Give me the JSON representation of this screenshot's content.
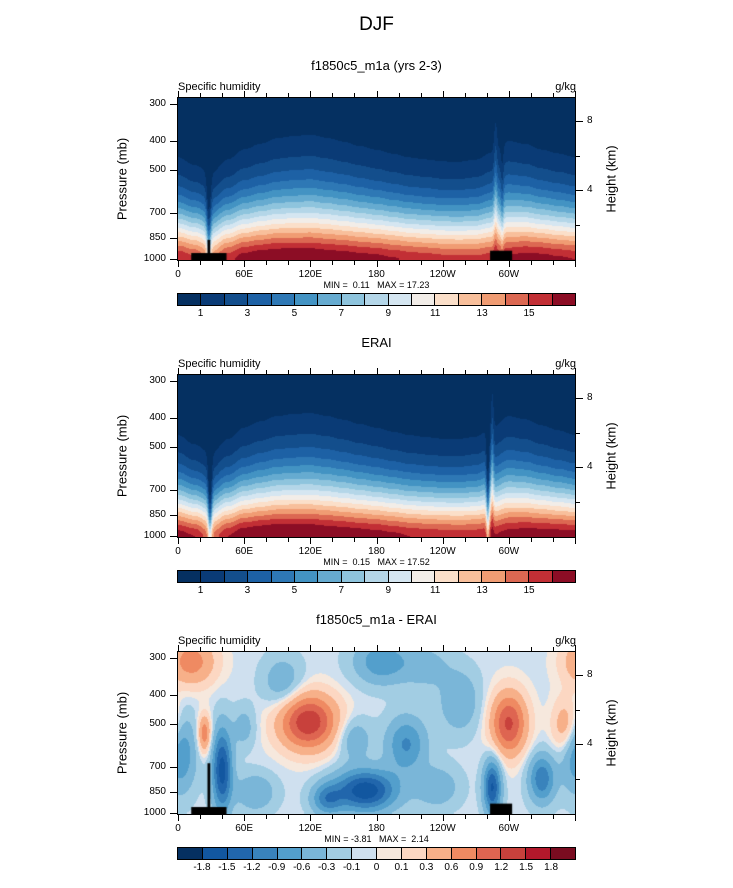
{
  "chart_data": {
    "type": "heatmap",
    "title": "DJF",
    "field_label": "Specific humidity",
    "units": "g/kg",
    "profile_exponent": 1.5,
    "x_axis": {
      "range_deg": [
        0,
        360
      ],
      "minor_step_deg": 20,
      "major_ticks": [
        {
          "deg": 0,
          "label": "0"
        },
        {
          "deg": 60,
          "label": "60E"
        },
        {
          "deg": 120,
          "label": "120E"
        },
        {
          "deg": 180,
          "label": "180"
        },
        {
          "deg": 240,
          "label": "120W"
        },
        {
          "deg": 300,
          "label": "60W"
        }
      ]
    },
    "pressure_axis": {
      "label": "Pressure (mb)",
      "scale": "log",
      "top_mb": 287,
      "bottom_mb": 1008,
      "ticks": [
        300,
        400,
        500,
        700,
        850,
        1000
      ]
    },
    "height_axis": {
      "label": "Height (km)",
      "scale_height_km": 7.5,
      "major_ticks_km": [
        8,
        4
      ],
      "minor_ticks_km": [
        6,
        2
      ]
    },
    "levels_absolute": [
      1,
      2,
      3,
      4,
      5,
      6,
      7,
      8,
      9,
      10,
      11,
      12,
      13,
      14,
      15,
      16
    ],
    "palette_absolute": [
      "#053061",
      "#0a3b76",
      "#134e8c",
      "#1d61a5",
      "#2e78b5",
      "#4393c3",
      "#66abd0",
      "#8ec4dd",
      "#b4d6e8",
      "#d5e6f1",
      "#f2ede8",
      "#fbdfc9",
      "#f8bf9b",
      "#f09c73",
      "#dc6852",
      "#c22f35",
      "#8c0d25"
    ],
    "colorbar_labels_absolute": [
      "1",
      "3",
      "5",
      "7",
      "9",
      "11",
      "13",
      "15"
    ],
    "levels_difference": [
      -1.8,
      -1.5,
      -1.2,
      -0.9,
      -0.6,
      -0.3,
      -0.1,
      0,
      0.1,
      0.3,
      0.6,
      0.9,
      1.2,
      1.5,
      1.8
    ],
    "palette_difference": [
      "#053061",
      "#1257a0",
      "#2166ac",
      "#3983bc",
      "#539fcc",
      "#7ab6d8",
      "#a2cde3",
      "#cfe0ef",
      "#f6e8dd",
      "#fcd7c2",
      "#f7b089",
      "#ef8a62",
      "#de6551",
      "#c8413c",
      "#b2182b",
      "#7a0c20"
    ],
    "colorbar_labels_difference": [
      "-1.8",
      "-1.5",
      "-1.2",
      "-0.9",
      "-0.6",
      "-0.3",
      "-0.1",
      "0",
      "0.1",
      "0.3",
      "0.6",
      "0.9",
      "1.2",
      "1.5",
      "1.8"
    ],
    "panels": [
      {
        "title": "f1850c5_m1a (yrs 2-3)",
        "kind": "absolute",
        "stats": "MIN =  0.11   MAX = 17.23",
        "min": 0.11,
        "max": 17.23,
        "lon_step_deg": 15,
        "surface_q_gkg": [
          16.0,
          15.3,
          13.8,
          15.6,
          16.6,
          17.0,
          17.2,
          17.2,
          17.2,
          17.0,
          16.8,
          16.6,
          16.4,
          16.1,
          15.8,
          15.6,
          15.4,
          15.3,
          15.3,
          15.6,
          16.3,
          16.6,
          16.5,
          16.2,
          16.0
        ],
        "moist_depth_km": [
          3.0,
          2.8,
          2.62,
          2.95,
          3.2,
          3.35,
          3.5,
          3.56,
          3.6,
          3.52,
          3.42,
          3.3,
          3.2,
          3.1,
          3.0,
          2.95,
          2.9,
          2.9,
          2.96,
          3.16,
          3.46,
          3.36,
          3.2,
          3.1,
          3.0
        ],
        "spikes": [
          {
            "lon": 28,
            "width_deg": 2.2,
            "depth_factor": 0.62,
            "q_factor": 0.75
          },
          {
            "lon": 288,
            "width_deg": 1.8,
            "depth_factor": 1.25,
            "q_factor": 1.05
          },
          {
            "lon": 294,
            "width_deg": 1.5,
            "depth_factor": 0.85,
            "q_factor": 0.95
          }
        ],
        "topography": [
          {
            "lon0": 12,
            "lon1": 44,
            "top_mb": 955,
            "spike_lon": 28,
            "spike_width_deg": 2.5,
            "spike_top_mb": 862
          },
          {
            "lon0": 283,
            "lon1": 303,
            "top_mb": 938
          }
        ]
      },
      {
        "title": "ERAI",
        "kind": "absolute",
        "stats": "MIN =  0.15   MAX = 17.52",
        "min": 0.15,
        "max": 17.52,
        "lon_step_deg": 15,
        "surface_q_gkg": [
          16.6,
          16.0,
          14.2,
          16.0,
          17.0,
          17.3,
          17.5,
          17.5,
          17.4,
          17.2,
          17.0,
          16.8,
          16.6,
          16.3,
          16.0,
          15.8,
          15.7,
          15.6,
          15.7,
          16.0,
          16.6,
          16.8,
          16.8,
          16.7,
          16.6
        ],
        "moist_depth_km": [
          2.95,
          2.7,
          2.5,
          2.85,
          3.15,
          3.32,
          3.46,
          3.52,
          3.55,
          3.48,
          3.38,
          3.26,
          3.16,
          3.06,
          2.97,
          2.92,
          2.88,
          2.88,
          2.94,
          3.2,
          3.5,
          3.4,
          3.22,
          3.08,
          2.95
        ],
        "spikes": [
          {
            "lon": 29,
            "width_deg": 2.0,
            "depth_factor": 0.52,
            "q_factor": 0.72
          },
          {
            "lon": 281,
            "width_deg": 1.6,
            "depth_factor": 0.62,
            "q_factor": 0.8
          },
          {
            "lon": 285,
            "width_deg": 1.5,
            "depth_factor": 1.3,
            "q_factor": 1.05
          }
        ],
        "topography": []
      },
      {
        "title": "f1850c5_m1a - ERAI",
        "kind": "difference",
        "stats": "MIN = -3.81   MAX =  2.14",
        "min": -3.81,
        "max": 2.14,
        "background": -0.04,
        "anomalies": [
          {
            "lon": 2,
            "z": 3.5,
            "slon": 14,
            "sz": 2.2,
            "amp": -0.9
          },
          {
            "lon": 40,
            "z": 2.5,
            "slon": 9,
            "sz": 2.4,
            "amp": -1.6
          },
          {
            "lon": 24,
            "z": 4.6,
            "slon": 6,
            "sz": 1.1,
            "amp": 0.9
          },
          {
            "lon": 12,
            "z": 8.8,
            "slon": 22,
            "sz": 1.4,
            "amp": 0.8
          },
          {
            "lon": 70,
            "z": 1.2,
            "slon": 18,
            "sz": 1.1,
            "amp": -0.55
          },
          {
            "lon": 60,
            "z": 5.0,
            "slon": 10,
            "sz": 1.2,
            "amp": -0.4
          },
          {
            "lon": 95,
            "z": 7.6,
            "slon": 18,
            "sz": 1.5,
            "amp": -0.5
          },
          {
            "lon": 118,
            "z": 5.3,
            "slon": 26,
            "sz": 1.6,
            "amp": 1.5
          },
          {
            "lon": 135,
            "z": 0.8,
            "slon": 14,
            "sz": 0.9,
            "amp": -0.9
          },
          {
            "lon": 170,
            "z": 1.3,
            "slon": 28,
            "sz": 1.2,
            "amp": -1.7
          },
          {
            "lon": 160,
            "z": 4.3,
            "slon": 15,
            "sz": 1.2,
            "amp": -0.5
          },
          {
            "lon": 185,
            "z": 8.8,
            "slon": 25,
            "sz": 1.3,
            "amp": -0.8
          },
          {
            "lon": 207,
            "z": 4.0,
            "slon": 18,
            "sz": 1.6,
            "amp": -0.9
          },
          {
            "lon": 225,
            "z": 8.5,
            "slon": 20,
            "sz": 1.2,
            "amp": -0.4
          },
          {
            "lon": 235,
            "z": 1.5,
            "slon": 20,
            "sz": 1.2,
            "amp": -0.5
          },
          {
            "lon": 255,
            "z": 6.5,
            "slon": 18,
            "sz": 1.8,
            "amp": -0.55
          },
          {
            "lon": 300,
            "z": 5.2,
            "slon": 16,
            "sz": 1.8,
            "amp": 1.3
          },
          {
            "lon": 285,
            "z": 1.5,
            "slon": 8,
            "sz": 1.6,
            "amp": -1.5
          },
          {
            "lon": 330,
            "z": 2.0,
            "slon": 12,
            "sz": 1.4,
            "amp": -1.1
          },
          {
            "lon": 352,
            "z": 5.0,
            "slon": 12,
            "sz": 1.6,
            "amp": 0.7
          }
        ],
        "topography": [
          {
            "lon0": 12,
            "lon1": 44,
            "top_mb": 955,
            "spike_lon": 28,
            "spike_width_deg": 2.5,
            "spike_top_mb": 680
          },
          {
            "lon0": 283,
            "lon1": 303,
            "top_mb": 930
          }
        ]
      }
    ]
  }
}
